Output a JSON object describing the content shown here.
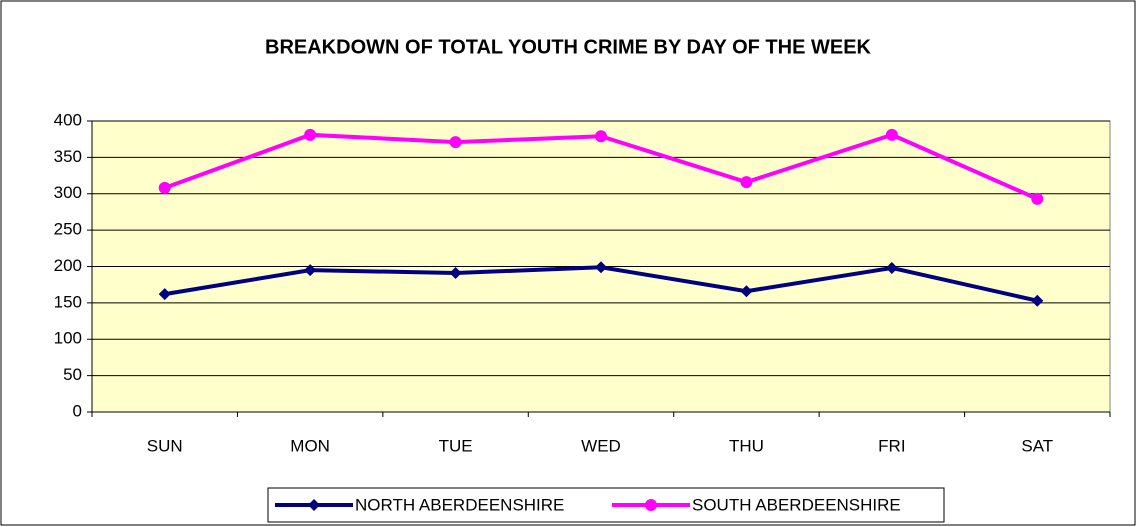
{
  "chart_data": {
    "type": "line",
    "title": "BREAKDOWN OF TOTAL YOUTH CRIME BY DAY OF THE WEEK",
    "categories": [
      "SUN",
      "MON",
      "TUE",
      "WED",
      "THU",
      "FRI",
      "SAT"
    ],
    "series": [
      {
        "name": "NORTH ABERDEENSHIRE",
        "color": "#000080",
        "marker": "diamond",
        "values": [
          162,
          195,
          191,
          199,
          166,
          198,
          153
        ]
      },
      {
        "name": "SOUTH ABERDEENSHIRE",
        "color": "#ff00ff",
        "marker": "circle",
        "values": [
          308,
          381,
          371,
          379,
          316,
          381,
          293
        ]
      }
    ],
    "ylim": [
      0,
      400
    ],
    "yticks": [
      0,
      50,
      100,
      150,
      200,
      250,
      300,
      350,
      400
    ],
    "grid": true,
    "legend": "bottom"
  }
}
